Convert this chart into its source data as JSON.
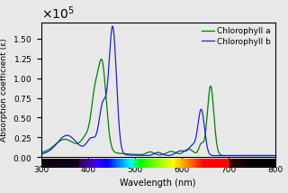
{
  "title": "",
  "xlabel": "Wavelength (nm)",
  "ylabel": "Absorption coefficient (ε)",
  "xlim": [
    300,
    800
  ],
  "ylim": [
    0,
    170000.0
  ],
  "legend_labels": [
    "Chlorophyll a",
    "Chlorophyll b"
  ],
  "chl_a_color": "#008000",
  "chl_b_color": "#2020dd",
  "background_color": "#e8e8e8",
  "figsize": [
    3.2,
    2.14
  ],
  "dpi": 100
}
